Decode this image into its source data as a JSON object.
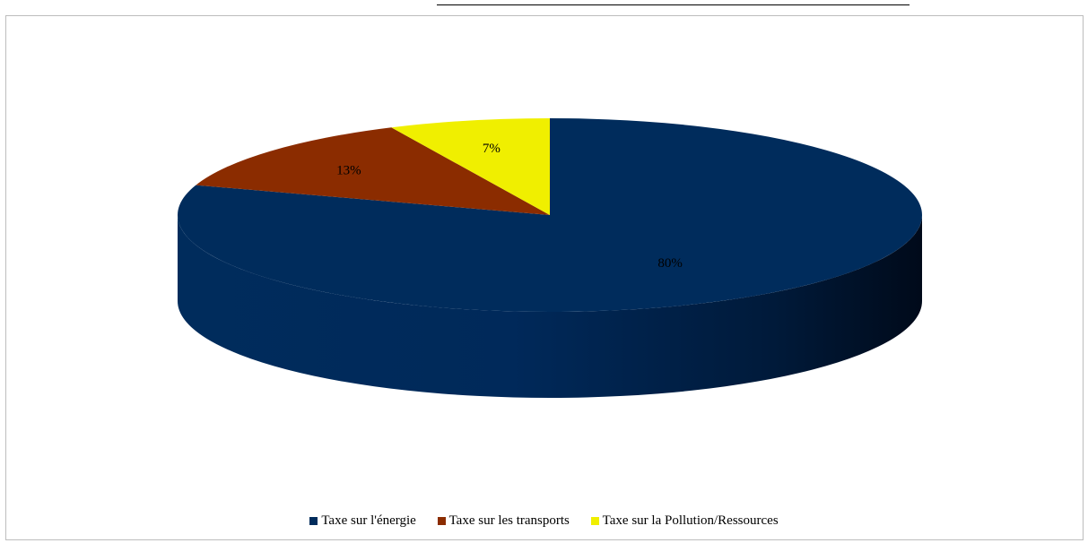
{
  "chart_data": {
    "type": "pie",
    "style": "3d",
    "categories": [
      "Taxe sur l'énergie",
      "Taxe sur les transports",
      "Taxe sur la Pollution/Ressources"
    ],
    "values": [
      80,
      13,
      7
    ],
    "data_labels": [
      "80%",
      "13%",
      "7%"
    ],
    "colors": [
      "#002c5c",
      "#8b2c00",
      "#f0ef00"
    ],
    "label_color": "#000000",
    "legend": {
      "position": "bottom",
      "entries": [
        "Taxe sur l'énergie",
        "Taxe sur les transports",
        "Taxe sur la Pollution/Ressources"
      ]
    }
  }
}
